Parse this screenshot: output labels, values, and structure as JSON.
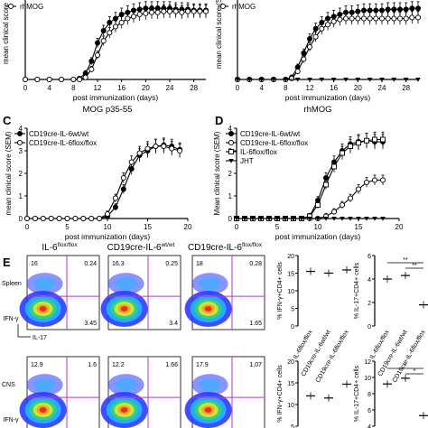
{
  "chart_data": [
    {
      "panel": "A",
      "type": "line",
      "title": "",
      "legend_partial": "rhMOG",
      "xlabel": "post immunization (days)",
      "ylabel": "mean clinical score",
      "xticks": [
        0,
        4,
        8,
        12,
        16,
        20,
        24,
        28
      ],
      "ylim": [
        0,
        4
      ],
      "series": [
        {
          "marker": "filled-circle",
          "x": [
            0,
            2,
            4,
            6,
            8,
            9,
            10,
            11,
            12,
            13,
            14,
            15,
            16,
            17,
            18,
            19,
            20,
            21,
            22,
            23,
            24,
            25,
            26,
            27,
            28,
            29,
            30
          ],
          "values": [
            0,
            0,
            0,
            0,
            0,
            0.05,
            0.3,
            0.9,
            1.8,
            2.4,
            2.8,
            3.0,
            3.2,
            3.3,
            3.4,
            3.45,
            3.5,
            3.5,
            3.5,
            3.5,
            3.5,
            3.45,
            3.45,
            3.45,
            3.4,
            3.4,
            3.4
          ]
        },
        {
          "marker": "open-circle",
          "x": [
            0,
            2,
            4,
            6,
            8,
            9,
            10,
            11,
            12,
            13,
            14,
            15,
            16,
            17,
            18,
            19,
            20,
            21,
            22,
            23,
            24,
            25,
            26,
            27,
            28,
            29,
            30
          ],
          "values": [
            0,
            0,
            0,
            0,
            0,
            0,
            0.1,
            0.5,
            1.2,
            1.9,
            2.3,
            2.6,
            2.8,
            3.0,
            3.1,
            3.2,
            3.25,
            3.3,
            3.3,
            3.35,
            3.35,
            3.35,
            3.3,
            3.35,
            3.35,
            3.35,
            3.35
          ]
        }
      ]
    },
    {
      "panel": "B",
      "type": "line",
      "title": "",
      "legend_partial": "rhMOG",
      "xlabel": "post immunization (days)",
      "ylabel": "mean clinical score (S",
      "xticks": [
        0,
        4,
        8,
        12,
        16,
        20,
        24,
        28
      ],
      "ylim": [
        0,
        4
      ],
      "series": [
        {
          "marker": "filled-circle",
          "x": [
            0,
            2,
            4,
            6,
            8,
            9,
            10,
            11,
            12,
            13,
            14,
            15,
            16,
            17,
            18,
            19,
            20,
            21,
            22,
            23,
            24,
            25,
            26,
            27,
            28,
            29,
            30
          ],
          "values": [
            0,
            0,
            0,
            0,
            0,
            0.1,
            0.6,
            1.3,
            2.0,
            2.5,
            2.8,
            3.0,
            3.1,
            3.2,
            3.3,
            3.3,
            3.35,
            3.4,
            3.4,
            3.4,
            3.4,
            3.45,
            3.45,
            3.45,
            3.45,
            3.5,
            3.5
          ]
        },
        {
          "marker": "open-circle",
          "x": [
            0,
            2,
            4,
            6,
            8,
            9,
            10,
            11,
            12,
            13,
            14,
            15,
            16,
            17,
            18,
            19,
            20,
            21,
            22,
            23,
            24,
            25,
            26,
            27,
            28,
            29,
            30
          ],
          "values": [
            0,
            0,
            0,
            0,
            0,
            0.05,
            0.4,
            1.0,
            1.6,
            2.1,
            2.5,
            2.7,
            2.85,
            2.95,
            3.0,
            3.0,
            3.0,
            3.0,
            3.0,
            3.0,
            3.0,
            3.0,
            3.0,
            3.0,
            3.0,
            3.05,
            3.05
          ]
        },
        {
          "marker": "filled-triangle-down",
          "x": [
            0,
            2,
            4,
            6,
            8,
            10,
            12,
            14,
            16,
            18,
            20,
            22,
            24,
            26,
            28,
            30
          ],
          "values": [
            0,
            0,
            0,
            0,
            0,
            0,
            0,
            0,
            0,
            0,
            0,
            0,
            0,
            0,
            0,
            0
          ]
        }
      ]
    },
    {
      "panel": "C",
      "type": "line",
      "title": "MOG p35-55",
      "xlabel": "post immunization (days)",
      "ylabel": "mean clinical score (SEM)",
      "xticks": [
        0,
        5,
        10,
        15,
        20
      ],
      "yticks": [
        0,
        1,
        2,
        3,
        4
      ],
      "xlim": [
        0,
        20
      ],
      "ylim": [
        0,
        4
      ],
      "legend": [
        "CD19cre-IL-6wt/wt",
        "CD19cre-IL-6flox/flox"
      ],
      "series": [
        {
          "name": "CD19cre-IL-6wt/wt",
          "marker": "filled-circle",
          "x": [
            0,
            1,
            2,
            3,
            4,
            5,
            6,
            7,
            8,
            9,
            10,
            11,
            12,
            13,
            14,
            15,
            16,
            17,
            18,
            19
          ],
          "values": [
            0,
            0,
            0,
            0,
            0,
            0,
            0,
            0,
            0,
            0,
            0.1,
            0.5,
            1.3,
            2.2,
            2.8,
            3.0,
            3.2,
            3.25,
            3.2,
            3.05
          ]
        },
        {
          "name": "CD19cre-IL-6flox/flox",
          "marker": "open-circle",
          "x": [
            0,
            1,
            2,
            3,
            4,
            5,
            6,
            7,
            8,
            9,
            10,
            11,
            12,
            13,
            14,
            15,
            16,
            17,
            18,
            19
          ],
          "values": [
            0,
            0,
            0,
            0,
            0,
            0,
            0,
            0,
            0,
            0,
            0.2,
            0.9,
            1.8,
            2.5,
            2.9,
            3.1,
            3.2,
            3.2,
            3.1,
            3.0
          ]
        }
      ]
    },
    {
      "panel": "D",
      "type": "line",
      "title": "rhMOG",
      "xlabel": "post immunization (days)",
      "ylabel": "Mean clinical score (SEM)",
      "xticks": [
        0,
        5,
        10,
        15,
        20
      ],
      "yticks": [
        0,
        1,
        2,
        3,
        4
      ],
      "xlim": [
        0,
        20
      ],
      "ylim": [
        0,
        4
      ],
      "legend": [
        "CD19cre-IL-6wt/wt",
        "CD19cre-IL-6flox/flox",
        "IL-6flox/flox",
        "JHT"
      ],
      "series": [
        {
          "name": "CD19cre-IL-6wt/wt",
          "marker": "filled-circle",
          "x": [
            0,
            1,
            2,
            3,
            4,
            5,
            6,
            7,
            8,
            9,
            10,
            11,
            12,
            13,
            14,
            15,
            16,
            17,
            18
          ],
          "values": [
            0,
            0,
            0,
            0,
            0,
            0,
            0,
            0,
            0,
            0.1,
            0.8,
            1.8,
            2.5,
            3.0,
            3.3,
            3.4,
            3.45,
            3.4,
            3.4
          ]
        },
        {
          "name": "CD19cre-IL-6flox/flox",
          "marker": "open-circle",
          "x": [
            0,
            1,
            2,
            3,
            4,
            5,
            6,
            7,
            8,
            9,
            10,
            11,
            12,
            13,
            14,
            15,
            16,
            17,
            18
          ],
          "values": [
            0,
            0,
            0,
            0,
            0,
            0,
            0,
            0,
            0,
            0,
            0,
            0.1,
            0.3,
            0.6,
            0.9,
            1.3,
            1.6,
            1.7,
            1.7
          ]
        },
        {
          "name": "IL-6flox/flox",
          "marker": "open-square",
          "x": [
            0,
            1,
            2,
            3,
            4,
            5,
            6,
            7,
            8,
            9,
            10,
            11,
            12,
            13,
            14,
            15,
            16,
            17,
            18
          ],
          "values": [
            0,
            0,
            0,
            0,
            0,
            0,
            0,
            0,
            0,
            0.1,
            0.6,
            1.5,
            2.3,
            2.9,
            3.2,
            3.35,
            3.45,
            3.5,
            3.5
          ]
        },
        {
          "name": "JHT",
          "marker": "filled-triangle-down",
          "x": [
            0,
            1,
            2,
            3,
            4,
            5,
            6,
            7,
            8,
            9,
            10,
            11,
            12,
            13,
            14,
            15,
            16,
            17,
            18
          ],
          "values": [
            0,
            0,
            0,
            0,
            0,
            0,
            0,
            0,
            0,
            0,
            0,
            0,
            0,
            0,
            0,
            0,
            0,
            0,
            0
          ]
        }
      ]
    }
  ],
  "labels": {
    "A": "A",
    "B": "B",
    "C": "C",
    "D": "D",
    "E": "E"
  },
  "flow": {
    "columns": [
      {
        "head": "IL-6",
        "sup": "flox/flox"
      },
      {
        "head": "CD19cre-IL-6",
        "sup": "wt/wt"
      },
      {
        "head": "CD19cre-IL-6",
        "sup": "flox/flox"
      }
    ],
    "rows": [
      {
        "label": "Spleen",
        "quads": [
          {
            "ul": "16",
            "ur": "0.24",
            "lr": "3.45"
          },
          {
            "ul": "16.3",
            "ur": "0.25",
            "lr": "3.4"
          },
          {
            "ul": "18",
            "ur": "0.28",
            "lr": "1.65"
          }
        ]
      },
      {
        "label": "CNS",
        "quads": [
          {
            "ul": "12.9",
            "ur": "1.6",
            "lr": ""
          },
          {
            "ul": "12.2",
            "ur": "1.66",
            "lr": ""
          },
          {
            "ul": "17.9",
            "ur": "1.07",
            "lr": ""
          }
        ]
      }
    ],
    "y_axis": "IFN-γ",
    "x_axis": "IL-17"
  },
  "summary": {
    "ifn_ylabel": "% IFN-γ+CD4+ cells",
    "il17_ylabel": "% IL-17+CD4+ cells",
    "ifn_yticks_top": [
      "20",
      "15",
      "10",
      "5",
      "0"
    ],
    "ifn_yticks_bottom": [
      "20",
      "15",
      "10",
      "5"
    ],
    "il17_yticks_top": [
      "6",
      "4",
      "2",
      "0"
    ],
    "il17_yticks_bottom": [
      "12",
      "10",
      "8",
      "6",
      "4"
    ],
    "groups": [
      "IL-6flox/flox",
      "CD19cre-IL-6wt/wt",
      "CD19cre-IL-6flox/flox"
    ],
    "sig": [
      "**",
      "**",
      "*",
      "*"
    ],
    "spleen_ifn": [
      15.5,
      15.0,
      15.9
    ],
    "spleen_il17": [
      4.0,
      4.3,
      1.8
    ],
    "cns_ifn": [
      12.0,
      11.5,
      14.7
    ],
    "cns_il17": [
      9.2,
      9.9,
      5.3
    ]
  }
}
